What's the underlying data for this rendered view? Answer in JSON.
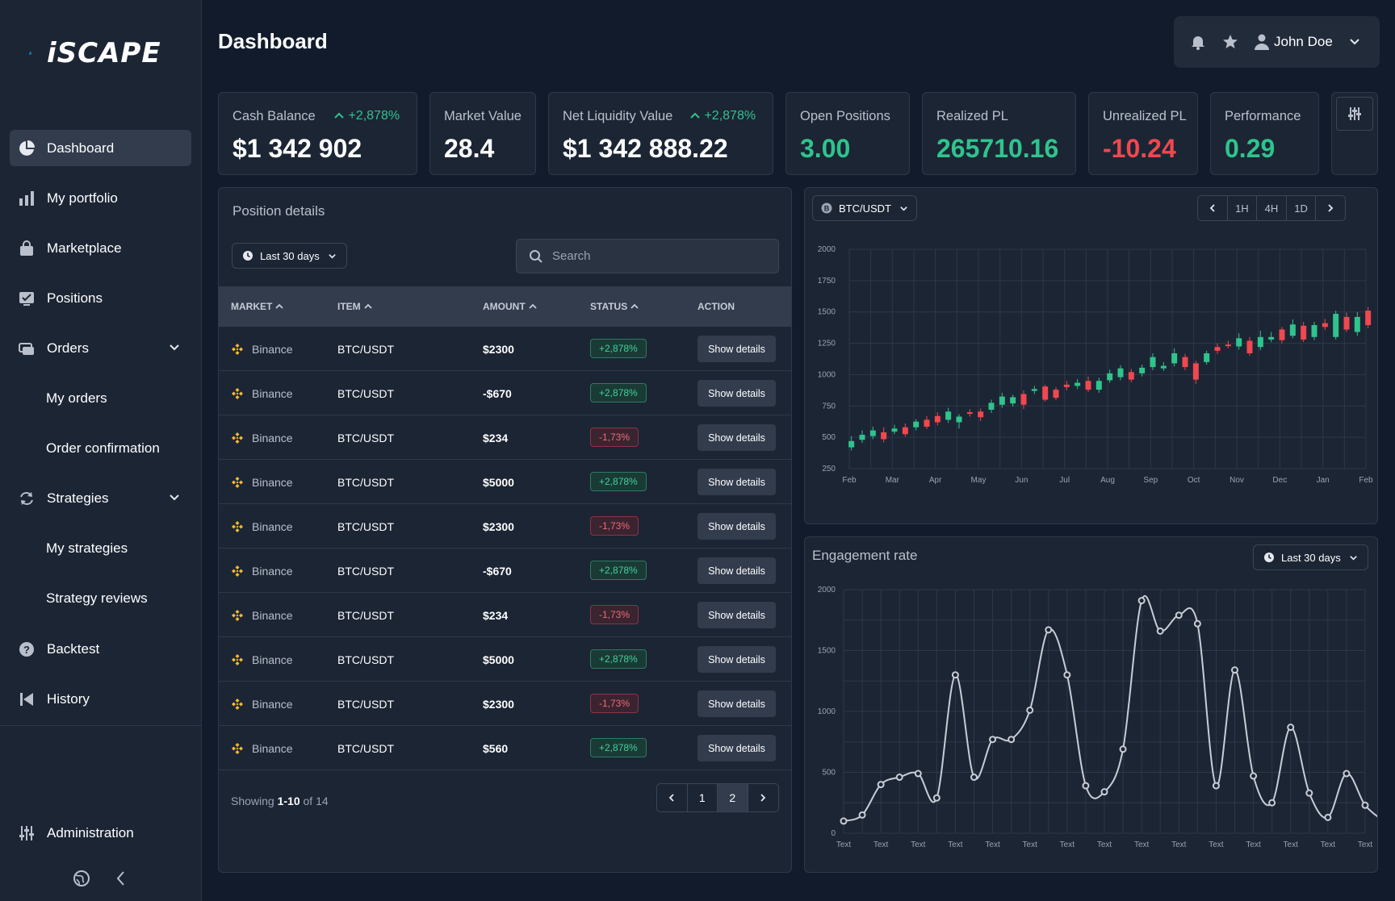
{
  "app": {
    "logo": "iSCAPE",
    "page_title": "Dashboard"
  },
  "sidebar": {
    "items": [
      {
        "label": "Dashboard",
        "icon": "pie-chart-icon",
        "active": true
      },
      {
        "label": "My portfolio",
        "icon": "bar-chart-icon"
      },
      {
        "label": "Marketplace",
        "icon": "shopping-bag-icon"
      },
      {
        "label": "Positions",
        "icon": "clipboard-check-icon"
      },
      {
        "label": "Orders",
        "icon": "orders-icon",
        "expandable": true
      },
      {
        "label": "Strategies",
        "icon": "refresh-icon",
        "expandable": true
      },
      {
        "label": "Backtest",
        "icon": "help-circle-icon"
      },
      {
        "label": "History",
        "icon": "skip-back-icon"
      },
      {
        "label": "Administration",
        "icon": "sliders-icon"
      }
    ],
    "sub_items": {
      "orders": [
        "My orders",
        "Order confirmation"
      ],
      "strategies": [
        "My strategies",
        "Strategy reviews"
      ]
    }
  },
  "header": {
    "user_name": "John Doe"
  },
  "stats": [
    {
      "label": "Cash Balance",
      "change": "+2,878%",
      "value": "$1 342 902",
      "tone": "white"
    },
    {
      "label": "Market Value",
      "value": "28.4",
      "tone": "white"
    },
    {
      "label": "Net Liquidity Value",
      "change": "+2,878%",
      "value": "$1 342 888.22",
      "tone": "white"
    },
    {
      "label": "Open Positions",
      "value": "3.00",
      "tone": "green"
    },
    {
      "label": "Realized PL",
      "value": "265710.16",
      "tone": "green"
    },
    {
      "label": "Unrealized PL",
      "value": "-10.24",
      "tone": "red"
    },
    {
      "label": "Performance",
      "value": "0.29",
      "tone": "green"
    }
  ],
  "positions": {
    "title": "Position details",
    "range_label": "Last 30 days",
    "search_placeholder": "Search",
    "columns": [
      "MARKET",
      "ITEM",
      "AMOUNT",
      "STATUS",
      "ACTION"
    ],
    "action_label": "Show details",
    "rows": [
      {
        "market": "Binance",
        "item": "BTC/USDT",
        "amount": "$2300",
        "status": "+2,878%",
        "positive": true
      },
      {
        "market": "Binance",
        "item": "BTC/USDT",
        "amount": "-$670",
        "status": "+2,878%",
        "positive": true
      },
      {
        "market": "Binance",
        "item": "BTC/USDT",
        "amount": "$234",
        "status": "-1,73%",
        "positive": false
      },
      {
        "market": "Binance",
        "item": "BTC/USDT",
        "amount": "$5000",
        "status": "+2,878%",
        "positive": true
      },
      {
        "market": "Binance",
        "item": "BTC/USDT",
        "amount": "$2300",
        "status": "-1,73%",
        "positive": false
      },
      {
        "market": "Binance",
        "item": "BTC/USDT",
        "amount": "-$670",
        "status": "+2,878%",
        "positive": true
      },
      {
        "market": "Binance",
        "item": "BTC/USDT",
        "amount": "$234",
        "status": "-1,73%",
        "positive": false
      },
      {
        "market": "Binance",
        "item": "BTC/USDT",
        "amount": "$5000",
        "status": "+2,878%",
        "positive": true
      },
      {
        "market": "Binance",
        "item": "BTC/USDT",
        "amount": "$2300",
        "status": "-1,73%",
        "positive": false
      },
      {
        "market": "Binance",
        "item": "BTC/USDT",
        "amount": "$560",
        "status": "+2,878%",
        "positive": true
      }
    ],
    "pagination": {
      "prefix": "Showing",
      "range": "1-10",
      "of_text": "of 14",
      "pages": [
        "1",
        "2"
      ],
      "current": "2"
    }
  },
  "colors": {
    "positive": "#2fc48d",
    "negative": "#f0484f",
    "accent_binance": "#f3ba2f",
    "line": "#c8cdd6"
  },
  "chart_data": [
    {
      "type": "candlestick",
      "pair_label": "BTC/USDT",
      "timeframes": [
        "1H",
        "4H",
        "1D"
      ],
      "categories": [
        "Feb",
        "Mar",
        "Apr",
        "May",
        "Jun",
        "Jul",
        "Aug",
        "Sep",
        "Oct",
        "Nov",
        "Dec",
        "Jan",
        "Feb"
      ],
      "yticks": [
        250,
        500,
        750,
        1000,
        1250,
        1500,
        1750,
        2000
      ],
      "ylim": [
        250,
        2000
      ],
      "grid": true,
      "candles": [
        {
          "x": 0.05,
          "o": 420,
          "c": 470,
          "h": 510,
          "l": 395
        },
        {
          "x": 0.3,
          "o": 480,
          "c": 520,
          "h": 555,
          "l": 455
        },
        {
          "x": 0.55,
          "o": 510,
          "c": 555,
          "h": 585,
          "l": 485
        },
        {
          "x": 0.8,
          "o": 540,
          "c": 485,
          "h": 580,
          "l": 460
        },
        {
          "x": 1.05,
          "o": 545,
          "c": 570,
          "h": 600,
          "l": 525
        },
        {
          "x": 1.3,
          "o": 580,
          "c": 525,
          "h": 610,
          "l": 505
        },
        {
          "x": 1.55,
          "o": 580,
          "c": 625,
          "h": 645,
          "l": 555
        },
        {
          "x": 1.8,
          "o": 640,
          "c": 585,
          "h": 670,
          "l": 565
        },
        {
          "x": 2.05,
          "o": 670,
          "c": 620,
          "h": 700,
          "l": 595
        },
        {
          "x": 2.3,
          "o": 640,
          "c": 705,
          "h": 735,
          "l": 615
        },
        {
          "x": 2.55,
          "o": 620,
          "c": 665,
          "h": 685,
          "l": 570
        },
        {
          "x": 2.8,
          "o": 700,
          "c": 690,
          "h": 725,
          "l": 665
        },
        {
          "x": 3.05,
          "o": 705,
          "c": 660,
          "h": 730,
          "l": 630
        },
        {
          "x": 3.3,
          "o": 720,
          "c": 775,
          "h": 800,
          "l": 695
        },
        {
          "x": 3.55,
          "o": 760,
          "c": 825,
          "h": 855,
          "l": 735
        },
        {
          "x": 3.8,
          "o": 770,
          "c": 820,
          "h": 840,
          "l": 745
        },
        {
          "x": 4.05,
          "o": 845,
          "c": 760,
          "h": 875,
          "l": 725
        },
        {
          "x": 4.3,
          "o": 870,
          "c": 885,
          "h": 910,
          "l": 845
        },
        {
          "x": 4.55,
          "o": 905,
          "c": 800,
          "h": 920,
          "l": 785
        },
        {
          "x": 4.8,
          "o": 880,
          "c": 815,
          "h": 900,
          "l": 795
        },
        {
          "x": 5.05,
          "o": 920,
          "c": 900,
          "h": 950,
          "l": 875
        },
        {
          "x": 5.3,
          "o": 910,
          "c": 935,
          "h": 965,
          "l": 885
        },
        {
          "x": 5.55,
          "o": 950,
          "c": 880,
          "h": 985,
          "l": 860
        },
        {
          "x": 5.8,
          "o": 880,
          "c": 950,
          "h": 975,
          "l": 855
        },
        {
          "x": 6.05,
          "o": 955,
          "c": 1010,
          "h": 1040,
          "l": 935
        },
        {
          "x": 6.3,
          "o": 980,
          "c": 1050,
          "h": 1075,
          "l": 955
        },
        {
          "x": 6.55,
          "o": 1020,
          "c": 960,
          "h": 1045,
          "l": 940
        },
        {
          "x": 6.8,
          "o": 1010,
          "c": 1055,
          "h": 1080,
          "l": 985
        },
        {
          "x": 7.05,
          "o": 1060,
          "c": 1140,
          "h": 1170,
          "l": 1035
        },
        {
          "x": 7.3,
          "o": 1050,
          "c": 1070,
          "h": 1100,
          "l": 1030
        },
        {
          "x": 7.55,
          "o": 1090,
          "c": 1170,
          "h": 1210,
          "l": 1065
        },
        {
          "x": 7.8,
          "o": 1140,
          "c": 1060,
          "h": 1165,
          "l": 1035
        },
        {
          "x": 8.05,
          "o": 1090,
          "c": 960,
          "h": 1110,
          "l": 925
        },
        {
          "x": 8.3,
          "o": 1100,
          "c": 1170,
          "h": 1190,
          "l": 1080
        },
        {
          "x": 8.55,
          "o": 1220,
          "c": 1190,
          "h": 1250,
          "l": 1165
        },
        {
          "x": 8.8,
          "o": 1240,
          "c": 1230,
          "h": 1270,
          "l": 1210
        },
        {
          "x": 9.05,
          "o": 1225,
          "c": 1290,
          "h": 1330,
          "l": 1200
        },
        {
          "x": 9.3,
          "o": 1270,
          "c": 1170,
          "h": 1300,
          "l": 1150
        },
        {
          "x": 9.55,
          "o": 1220,
          "c": 1300,
          "h": 1350,
          "l": 1195
        },
        {
          "x": 9.8,
          "o": 1280,
          "c": 1300,
          "h": 1340,
          "l": 1260
        },
        {
          "x": 10.05,
          "o": 1360,
          "c": 1275,
          "h": 1380,
          "l": 1250
        },
        {
          "x": 10.3,
          "o": 1310,
          "c": 1400,
          "h": 1440,
          "l": 1290
        },
        {
          "x": 10.55,
          "o": 1390,
          "c": 1280,
          "h": 1420,
          "l": 1260
        },
        {
          "x": 10.8,
          "o": 1300,
          "c": 1395,
          "h": 1420,
          "l": 1275
        },
        {
          "x": 11.05,
          "o": 1410,
          "c": 1380,
          "h": 1445,
          "l": 1355
        },
        {
          "x": 11.3,
          "o": 1300,
          "c": 1485,
          "h": 1510,
          "l": 1280
        },
        {
          "x": 11.55,
          "o": 1460,
          "c": 1360,
          "h": 1495,
          "l": 1340
        },
        {
          "x": 11.8,
          "o": 1340,
          "c": 1460,
          "h": 1500,
          "l": 1310
        },
        {
          "x": 12.05,
          "o": 1510,
          "c": 1395,
          "h": 1540,
          "l": 1370
        }
      ]
    },
    {
      "type": "line",
      "title": "Engagement rate",
      "range_label": "Last 30 days",
      "categories": [
        "Text",
        "Text",
        "Text",
        "Text",
        "Text",
        "Text",
        "Text",
        "Text",
        "Text",
        "Text",
        "Text",
        "Text",
        "Text",
        "Text",
        "Text"
      ],
      "yticks": [
        0,
        500,
        1000,
        1500,
        2000
      ],
      "ylim": [
        0,
        2000
      ],
      "grid": true,
      "points": [
        {
          "x": 0,
          "y": 100
        },
        {
          "x": 0.5,
          "y": 150
        },
        {
          "x": 1,
          "y": 400
        },
        {
          "x": 1.5,
          "y": 460
        },
        {
          "x": 2,
          "y": 490
        },
        {
          "x": 2.5,
          "y": 290
        },
        {
          "x": 3,
          "y": 1300
        },
        {
          "x": 3.5,
          "y": 460
        },
        {
          "x": 4,
          "y": 770
        },
        {
          "x": 4.5,
          "y": 770
        },
        {
          "x": 5,
          "y": 1010
        },
        {
          "x": 5.5,
          "y": 1670
        },
        {
          "x": 6,
          "y": 1300
        },
        {
          "x": 6.5,
          "y": 390
        },
        {
          "x": 7,
          "y": 340
        },
        {
          "x": 7.5,
          "y": 690
        },
        {
          "x": 8,
          "y": 1910
        },
        {
          "x": 8.5,
          "y": 1660
        },
        {
          "x": 9,
          "y": 1790
        },
        {
          "x": 9.5,
          "y": 1720
        },
        {
          "x": 10,
          "y": 390
        },
        {
          "x": 10.5,
          "y": 1340
        },
        {
          "x": 11,
          "y": 470
        },
        {
          "x": 11.5,
          "y": 250
        },
        {
          "x": 12,
          "y": 870
        },
        {
          "x": 12.5,
          "y": 330
        },
        {
          "x": 13,
          "y": 130
        },
        {
          "x": 13.5,
          "y": 490
        },
        {
          "x": 14,
          "y": 230
        },
        {
          "x": 14.5,
          "y": 100
        }
      ]
    }
  ]
}
